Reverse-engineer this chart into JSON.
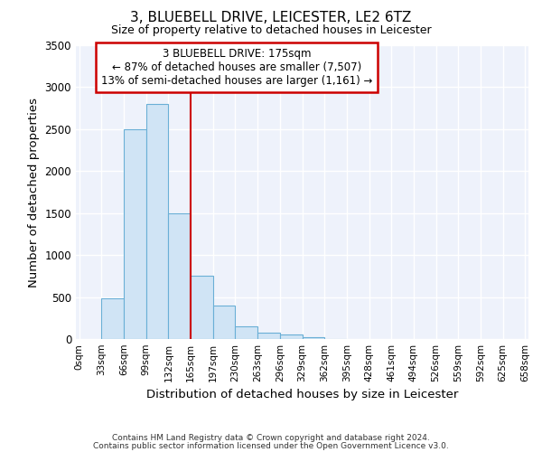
{
  "title1": "3, BLUEBELL DRIVE, LEICESTER, LE2 6TZ",
  "title2": "Size of property relative to detached houses in Leicester",
  "xlabel": "Distribution of detached houses by size in Leicester",
  "ylabel": "Number of detached properties",
  "bar_left_edges": [
    0,
    33,
    66,
    99,
    132,
    165,
    198,
    231,
    264,
    297,
    330,
    363,
    396,
    429,
    462,
    495,
    528,
    561,
    594,
    627
  ],
  "bar_heights": [
    0,
    480,
    2500,
    2800,
    1500,
    750,
    400,
    150,
    80,
    50,
    20,
    5,
    0,
    0,
    0,
    0,
    0,
    0,
    0,
    0
  ],
  "bin_width": 33,
  "bar_color": "#d0e4f5",
  "bar_edge_color": "#6aafd6",
  "vline_x": 165,
  "vline_color": "#cc0000",
  "annotation_box_color": "#cc0000",
  "annotation_line1": "3 BLUEBELL DRIVE: 175sqm",
  "annotation_line2": "← 87% of detached houses are smaller (7,507)",
  "annotation_line3": "13% of semi-detached houses are larger (1,161) →",
  "tick_labels": [
    "0sqm",
    "33sqm",
    "66sqm",
    "99sqm",
    "132sqm",
    "165sqm",
    "197sqm",
    "230sqm",
    "263sqm",
    "296sqm",
    "329sqm",
    "362sqm",
    "395sqm",
    "428sqm",
    "461sqm",
    "494sqm",
    "526sqm",
    "559sqm",
    "592sqm",
    "625sqm",
    "658sqm"
  ],
  "tick_positions": [
    0,
    33,
    66,
    99,
    132,
    165,
    198,
    231,
    264,
    297,
    330,
    363,
    396,
    429,
    462,
    495,
    528,
    561,
    594,
    627,
    660
  ],
  "ylim": [
    0,
    3500
  ],
  "xlim": [
    -5,
    665
  ],
  "yticks": [
    0,
    500,
    1000,
    1500,
    2000,
    2500,
    3000,
    3500
  ],
  "background_color": "#eef2fb",
  "grid_color": "#ffffff",
  "footer1": "Contains HM Land Registry data © Crown copyright and database right 2024.",
  "footer2": "Contains public sector information licensed under the Open Government Licence v3.0."
}
